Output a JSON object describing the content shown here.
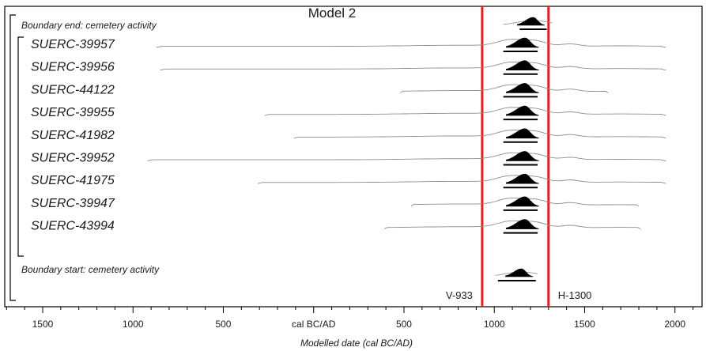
{
  "chart_data": {
    "type": "density-plot",
    "title": "Model 2",
    "xlabel": "Modelled date (cal BC/AD)",
    "xlim": [
      -1710,
      2150
    ],
    "ticks": [
      {
        "value": -1500,
        "label": "1500"
      },
      {
        "value": -1000,
        "label": "1000"
      },
      {
        "value": -500,
        "label": "500"
      },
      {
        "value": 0,
        "label": "cal BC/AD"
      },
      {
        "value": 500,
        "label": "500"
      },
      {
        "value": 1000,
        "label": "1000"
      },
      {
        "value": 1500,
        "label": "1500"
      },
      {
        "value": 2000,
        "label": "2000"
      }
    ],
    "boundaries": [
      {
        "label": "Boundary end: cemetery activity",
        "prior": [
          1050,
          1320
        ],
        "posterior_peak": 1215,
        "hpd": [
          1140,
          1290
        ]
      },
      {
        "label": "Boundary start: cemetery activity",
        "prior": [
          1005,
          1240
        ],
        "posterior_peak": 1150,
        "hpd": [
          1020,
          1230
        ]
      }
    ],
    "series": [
      {
        "name": "SUERC-39957",
        "likelihood": [
          -870,
          1950
        ],
        "posterior_peak": 1170,
        "hpd": [
          1050,
          1240
        ]
      },
      {
        "name": "SUERC-39956",
        "likelihood": [
          -850,
          1950
        ],
        "posterior_peak": 1170,
        "hpd": [
          1050,
          1240
        ]
      },
      {
        "name": "SUERC-44122",
        "likelihood": [
          480,
          1630
        ],
        "posterior_peak": 1170,
        "hpd": [
          1050,
          1240
        ]
      },
      {
        "name": "SUERC-39955",
        "likelihood": [
          -270,
          1950
        ],
        "posterior_peak": 1170,
        "hpd": [
          1050,
          1240
        ]
      },
      {
        "name": "SUERC-41982",
        "likelihood": [
          -110,
          1950
        ],
        "posterior_peak": 1170,
        "hpd": [
          1050,
          1240
        ]
      },
      {
        "name": "SUERC-39952",
        "likelihood": [
          -920,
          1950
        ],
        "posterior_peak": 1170,
        "hpd": [
          1050,
          1240
        ]
      },
      {
        "name": "SUERC-41975",
        "likelihood": [
          -310,
          1950
        ],
        "posterior_peak": 1170,
        "hpd": [
          1050,
          1240
        ]
      },
      {
        "name": "SUERC-39947",
        "likelihood": [
          540,
          1800
        ],
        "posterior_peak": 1170,
        "hpd": [
          1050,
          1240
        ]
      },
      {
        "name": "SUERC-43994",
        "likelihood": [
          390,
          1810
        ],
        "posterior_peak": 1170,
        "hpd": [
          1050,
          1240
        ]
      }
    ],
    "reference_lines": [
      {
        "label": "V-933",
        "value": 933,
        "color": "#e02020"
      },
      {
        "label": "H-1300",
        "value": 1300,
        "color": "#e02020"
      }
    ],
    "colors": {
      "posterior": "#000000",
      "likelihood": "#8c8c8c",
      "frame": "#000000"
    }
  }
}
